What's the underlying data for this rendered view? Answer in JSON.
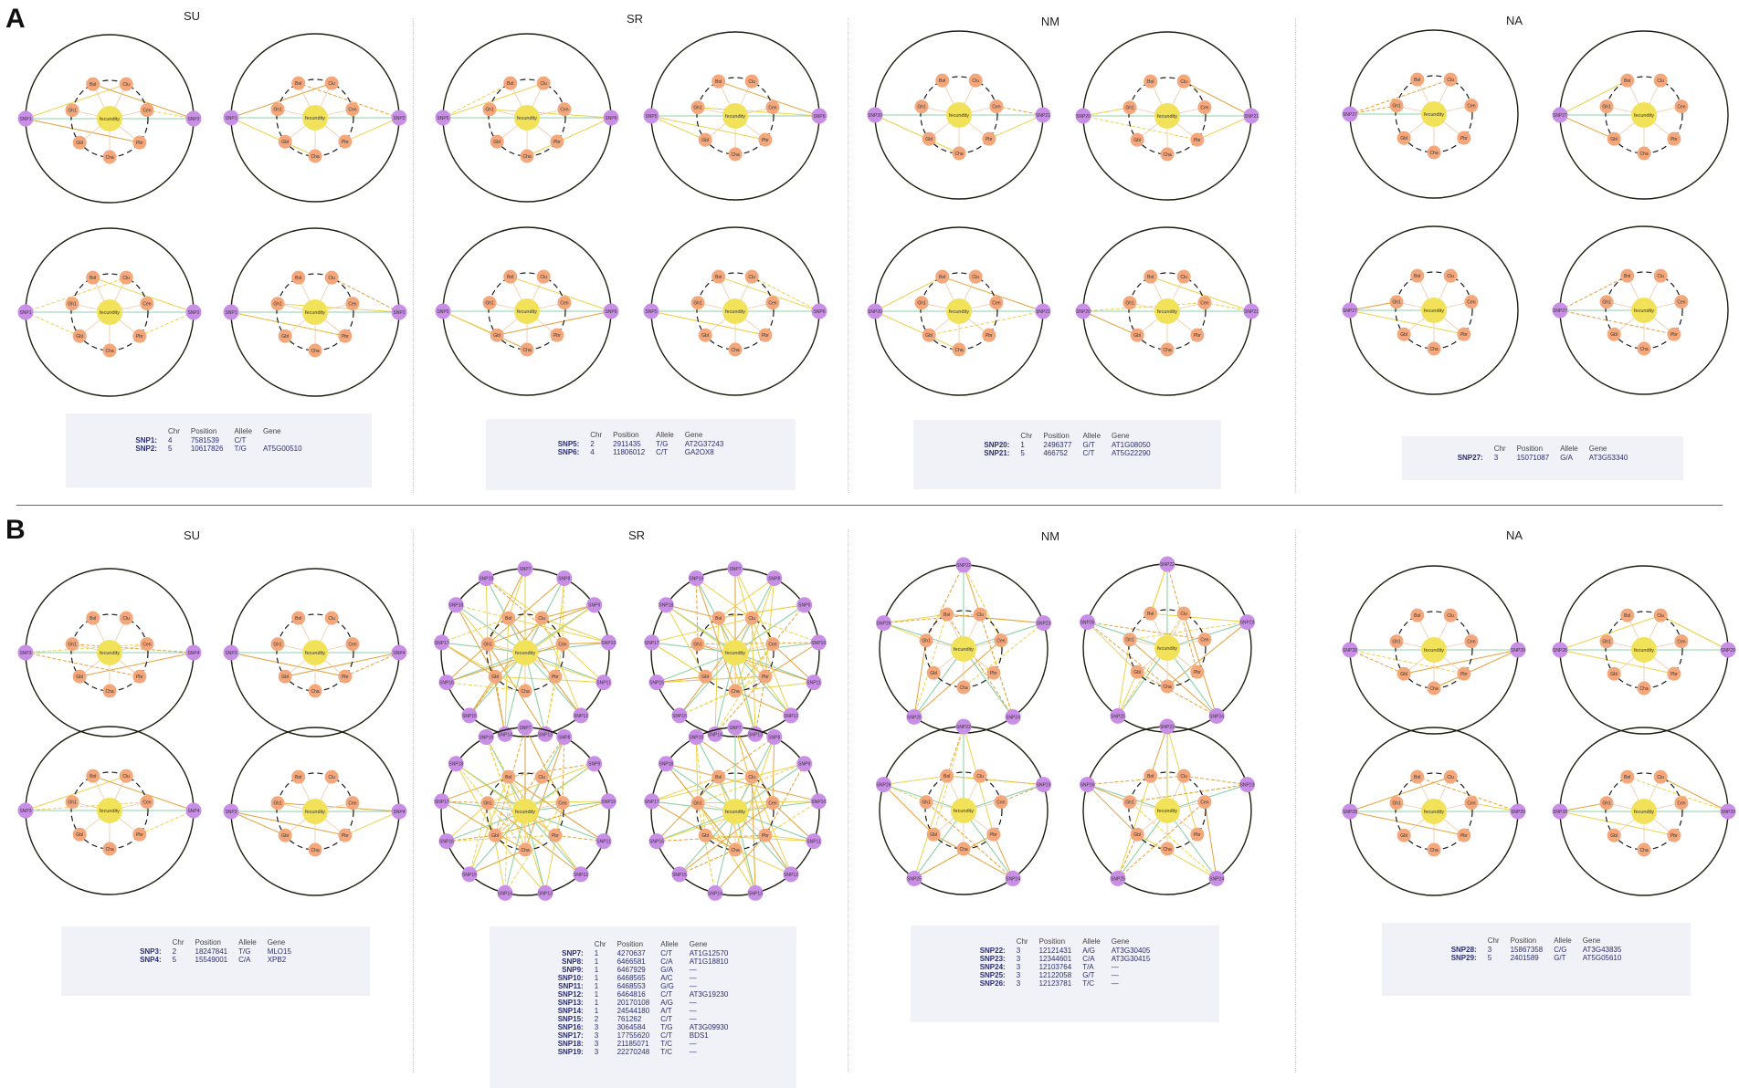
{
  "panels": [
    {
      "letter": "A",
      "columns": [
        {
          "title": "SU",
          "table": {
            "headers": [
              "",
              "Chr",
              "Position",
              "Allele",
              "Gene"
            ],
            "rows": [
              [
                "SNP1:",
                "4",
                "7581539",
                "C/T",
                ""
              ],
              [
                "SNP2:",
                "5",
                "10617826",
                "T/G",
                "AT5G00510"
              ]
            ]
          }
        },
        {
          "title": "SR",
          "table": {
            "headers": [
              "",
              "Chr",
              "Position",
              "Allele",
              "Gene"
            ],
            "rows": [
              [
                "SNP5:",
                "2",
                "2911435",
                "T/G",
                "AT2G37243"
              ],
              [
                "SNP6:",
                "4",
                "11806012",
                "C/T",
                "GA2OX8"
              ]
            ]
          }
        },
        {
          "title": "NM",
          "table": {
            "headers": [
              "",
              "Chr",
              "Position",
              "Allele",
              "Gene"
            ],
            "rows": [
              [
                "SNP20:",
                "1",
                "2496377",
                "G/T",
                "AT1G08050"
              ],
              [
                "SNP21:",
                "5",
                "466752",
                "C/T",
                "AT5G22290"
              ]
            ]
          }
        },
        {
          "title": "NA",
          "table": {
            "headers": [
              "",
              "Chr",
              "Position",
              "Allele",
              "Gene"
            ],
            "rows": [
              [
                "SNP27:",
                "3",
                "15071087",
                "G/A",
                "AT3G53340"
              ]
            ]
          }
        }
      ]
    },
    {
      "letter": "B",
      "columns": [
        {
          "title": "SU",
          "table": {
            "headers": [
              "",
              "Chr",
              "Position",
              "Allele",
              "Gene"
            ],
            "rows": [
              [
                "SNP3:",
                "2",
                "18247841",
                "T/G",
                "MLO15"
              ],
              [
                "SNP4:",
                "5",
                "15549001",
                "C/A",
                "XPB2"
              ]
            ]
          }
        },
        {
          "title": "SR",
          "table": {
            "headers": [
              "",
              "Chr",
              "Position",
              "Allele",
              "Gene"
            ],
            "rows": [
              [
                "SNP7:",
                "1",
                "4270637",
                "C/T",
                "AT1G12570"
              ],
              [
                "SNP8:",
                "1",
                "6466581",
                "C/A",
                "AT1G18810"
              ],
              [
                "SNP9:",
                "1",
                "6467929",
                "G/A",
                "—"
              ],
              [
                "SNP10:",
                "1",
                "6468565",
                "A/C",
                "—"
              ],
              [
                "SNP11:",
                "1",
                "6468553",
                "G/G",
                "—"
              ],
              [
                "SNP12:",
                "1",
                "6464816",
                "C/T",
                "AT3G19230"
              ],
              [
                "SNP13:",
                "1",
                "20170108",
                "A/G",
                "—"
              ],
              [
                "SNP14:",
                "1",
                "24544180",
                "A/T",
                "—"
              ],
              [
                "SNP15:",
                "2",
                "761262",
                "C/T",
                "—"
              ],
              [
                "SNP16:",
                "3",
                "3064584",
                "T/G",
                "AT3G09930"
              ],
              [
                "SNP17:",
                "3",
                "17755620",
                "C/T",
                "BDS1"
              ],
              [
                "SNP18:",
                "3",
                "21185071",
                "T/C",
                "—"
              ],
              [
                "SNP19:",
                "3",
                "22270248",
                "T/C",
                "—"
              ]
            ]
          }
        },
        {
          "title": "NM",
          "table": {
            "headers": [
              "",
              "Chr",
              "Position",
              "Allele",
              "Gene"
            ],
            "rows": [
              [
                "SNP22:",
                "3",
                "12121431",
                "A/G",
                "AT3G30405"
              ],
              [
                "SNP23:",
                "3",
                "12344601",
                "C/A",
                "AT3G30415"
              ],
              [
                "SNP24:",
                "3",
                "12103764",
                "T/A",
                "—"
              ],
              [
                "SNP25:",
                "3",
                "12122058",
                "G/T",
                "—"
              ],
              [
                "SNP26:",
                "3",
                "12123781",
                "T/C",
                "—"
              ]
            ]
          }
        },
        {
          "title": "NA",
          "table": {
            "headers": [
              "",
              "Chr",
              "Position",
              "Allele",
              "Gene"
            ],
            "rows": [
              [
                "SNP28:",
                "3",
                "15867358",
                "C/G",
                "AT3G43835"
              ],
              [
                "SNP29:",
                "5",
                "2401589",
                "G/T",
                "AT5G05610"
              ]
            ]
          }
        }
      ]
    }
  ],
  "networks": [
    {
      "center": "fecundity",
      "traits": [
        "Bol",
        "Clu",
        "Cen",
        "Pbr",
        "Cha",
        "Gbl",
        "Gh1"
      ],
      "snps": [
        "SNP1",
        "SNP2"
      ]
    },
    {
      "center": "fecundity",
      "traits": [
        "Bol",
        "Clu",
        "Cen",
        "Pbr",
        "Cha",
        "Gbl",
        "Gh1"
      ],
      "snps": [
        "SNP1",
        "SNP2"
      ]
    },
    {
      "center": "fecundity",
      "traits": [
        "Bol",
        "Clu",
        "Cen",
        "Pbr",
        "Cha",
        "Gbl",
        "Gh1"
      ],
      "snps": [
        "SNP5",
        "SNP6"
      ]
    },
    {
      "center": "fecundity",
      "traits": [
        "Bol",
        "Clu",
        "Cen",
        "Pbr",
        "Cha",
        "Gbl",
        "Gh1"
      ],
      "snps": [
        "SNP5",
        "SNP6"
      ]
    },
    {
      "center": "fecundity",
      "traits": [
        "Bol",
        "Clu",
        "Cen",
        "Pbr",
        "Cha",
        "Gbl",
        "Gh1"
      ],
      "snps": [
        "SNP20",
        "SNP21"
      ]
    },
    {
      "center": "fecundity",
      "traits": [
        "Bol",
        "Clu",
        "Cen",
        "Pbr",
        "Cha",
        "Gbl",
        "Gh1"
      ],
      "snps": [
        "SNP20",
        "SNP21"
      ]
    },
    {
      "center": "fecundity",
      "traits": [
        "Bol",
        "Clu",
        "Cen",
        "Pbr",
        "Cha",
        "Gbl",
        "Gh1"
      ],
      "snps": [
        "SNP27"
      ]
    },
    {
      "center": "fecundity",
      "traits": [
        "Bol",
        "Clu",
        "Cen",
        "Pbr",
        "Cha",
        "Gbl",
        "Gh1"
      ],
      "snps": [
        "SNP27"
      ]
    },
    {
      "center": "fecundity",
      "traits": [
        "Bol",
        "Clu",
        "Cen",
        "Pbr",
        "Cha",
        "Gbl",
        "Gh1"
      ],
      "snps": [
        "SNP1",
        "SNP2"
      ]
    },
    {
      "center": "fecundity",
      "traits": [
        "Bol",
        "Clu",
        "Cen",
        "Pbr",
        "Cha",
        "Gbl",
        "Gh1"
      ],
      "snps": [
        "SNP1",
        "SNP2"
      ]
    },
    {
      "center": "fecundity",
      "traits": [
        "Bol",
        "Clu",
        "Cen",
        "Pbr",
        "Cha",
        "Gbl",
        "Gh1"
      ],
      "snps": [
        "SNP5",
        "SNP6"
      ]
    },
    {
      "center": "fecundity",
      "traits": [
        "Bol",
        "Clu",
        "Cen",
        "Pbr",
        "Cha",
        "Gbl",
        "Gh1"
      ],
      "snps": [
        "SNP5",
        "SNP6"
      ]
    },
    {
      "center": "fecundity",
      "traits": [
        "Bol",
        "Clu",
        "Cen",
        "Pbr",
        "Cha",
        "Gbl",
        "Gh1"
      ],
      "snps": [
        "SNP20",
        "SNP21"
      ]
    },
    {
      "center": "fecundity",
      "traits": [
        "Bol",
        "Clu",
        "Cen",
        "Pbr",
        "Cha",
        "Gbl",
        "Gh1"
      ],
      "snps": [
        "SNP20",
        "SNP21"
      ]
    },
    {
      "center": "fecundity",
      "traits": [
        "Bol",
        "Clu",
        "Cen",
        "Pbr",
        "Cha",
        "Gbl",
        "Gh1"
      ],
      "snps": [
        "SNP27"
      ]
    },
    {
      "center": "fecundity",
      "traits": [
        "Bol",
        "Clu",
        "Cen",
        "Pbr",
        "Cha",
        "Gbl",
        "Gh1"
      ],
      "snps": [
        "SNP27"
      ]
    },
    {
      "center": "fecundity",
      "traits": [
        "Bol",
        "Clu",
        "Cen",
        "Pbr",
        "Cha",
        "Gbl",
        "Gh1"
      ],
      "snps": [
        "SNP3",
        "SNP4"
      ]
    },
    {
      "center": "fecundity",
      "traits": [
        "Bol",
        "Clu",
        "Cen",
        "Pbr",
        "Cha",
        "Gbl",
        "Gh1"
      ],
      "snps": [
        "SNP3",
        "SNP4"
      ]
    },
    {
      "center": "fecundity",
      "traits": [
        "Bol",
        "Clu",
        "Cen",
        "Pbr",
        "Cha",
        "Gbl",
        "Gh1"
      ],
      "snps": [
        "SNP7",
        "SNP8",
        "SNP9",
        "SNP10",
        "SNP11",
        "SNP12",
        "SNP13",
        "SNP14",
        "SNP15",
        "SNP16",
        "SNP17",
        "SNP18",
        "SNP19"
      ]
    },
    {
      "center": "fecundity",
      "traits": [
        "Bol",
        "Clu",
        "Cen",
        "Pbr",
        "Cha",
        "Gbl",
        "Gh1"
      ],
      "snps": [
        "SNP7",
        "SNP8",
        "SNP9",
        "SNP10",
        "SNP11",
        "SNP12",
        "SNP13",
        "SNP14",
        "SNP15",
        "SNP16",
        "SNP17",
        "SNP18",
        "SNP19"
      ]
    },
    {
      "center": "fecundity",
      "traits": [
        "Bol",
        "Clu",
        "Cen",
        "Pbr",
        "Cha",
        "Gbl",
        "Gh1"
      ],
      "snps": [
        "SNP22",
        "SNP23",
        "SNP24",
        "SNP25",
        "SNP26"
      ]
    },
    {
      "center": "fecundity",
      "traits": [
        "Bol",
        "Clu",
        "Cen",
        "Pbr",
        "Cha",
        "Gbl",
        "Gh1"
      ],
      "snps": [
        "SNP22",
        "SNP23",
        "SNP24",
        "SNP25",
        "SNP26"
      ]
    },
    {
      "center": "fecundity",
      "traits": [
        "Bol",
        "Clu",
        "Cen",
        "Pbr",
        "Cha",
        "Gbl",
        "Gh1"
      ],
      "snps": [
        "SNP28",
        "SNP29"
      ]
    },
    {
      "center": "fecundity",
      "traits": [
        "Bol",
        "Clu",
        "Cen",
        "Pbr",
        "Cha",
        "Gbl",
        "Gh1"
      ],
      "snps": [
        "SNP28",
        "SNP29"
      ]
    },
    {
      "center": "fecundity",
      "traits": [
        "Bol",
        "Clu",
        "Cen",
        "Pbr",
        "Cha",
        "Gbl",
        "Gh1"
      ],
      "snps": [
        "SNP3",
        "SNP4"
      ]
    },
    {
      "center": "fecundity",
      "traits": [
        "Bol",
        "Clu",
        "Cen",
        "Pbr",
        "Cha",
        "Gbl",
        "Gh1"
      ],
      "snps": [
        "SNP3",
        "SNP4"
      ]
    },
    {
      "center": "fecundity",
      "traits": [
        "Bol",
        "Clu",
        "Cen",
        "Pbr",
        "Cha",
        "Gbl",
        "Gh1"
      ],
      "snps": [
        "SNP7",
        "SNP8",
        "SNP9",
        "SNP10",
        "SNP11",
        "SNP12",
        "SNP13",
        "SNP14",
        "SNP15",
        "SNP16",
        "SNP17",
        "SNP18",
        "SNP19"
      ]
    },
    {
      "center": "fecundity",
      "traits": [
        "Bol",
        "Clu",
        "Cen",
        "Pbr",
        "Cha",
        "Gbl",
        "Gh1"
      ],
      "snps": [
        "SNP7",
        "SNP8",
        "SNP9",
        "SNP10",
        "SNP11",
        "SNP12",
        "SNP13",
        "SNP14",
        "SNP15",
        "SNP16",
        "SNP17",
        "SNP18",
        "SNP19"
      ]
    },
    {
      "center": "fecundity",
      "traits": [
        "Bol",
        "Clu",
        "Cen",
        "Pbr",
        "Cha",
        "Gbl",
        "Gh1"
      ],
      "snps": [
        "SNP22",
        "SNP23",
        "SNP24",
        "SNP25",
        "SNP26"
      ]
    },
    {
      "center": "fecundity",
      "traits": [
        "Bol",
        "Clu",
        "Cen",
        "Pbr",
        "Cha",
        "Gbl",
        "Gh1"
      ],
      "snps": [
        "SNP22",
        "SNP23",
        "SNP24",
        "SNP25",
        "SNP26"
      ]
    },
    {
      "center": "fecundity",
      "traits": [
        "Bol",
        "Clu",
        "Cen",
        "Pbr",
        "Cha",
        "Gbl",
        "Gh1"
      ],
      "snps": [
        "SNP28",
        "SNP29"
      ]
    },
    {
      "center": "fecundity",
      "traits": [
        "Bol",
        "Clu",
        "Cen",
        "Pbr",
        "Cha",
        "Gbl",
        "Gh1"
      ],
      "snps": [
        "SNP28",
        "SNP29"
      ]
    }
  ],
  "colors": {
    "outer_ring": "#1e1e0f",
    "inner_ring": "#1a1a1a",
    "center_node": "#f2e25a",
    "trait_node": "#f3a77a",
    "snp_node": "#c98ee6",
    "edge_green": "#8fd0a8",
    "edge_orange": "#e3a23c",
    "edge_yellow": "#ecd34a",
    "table_bg": "#f1f1f8",
    "table_text": "#2a2f6e"
  }
}
